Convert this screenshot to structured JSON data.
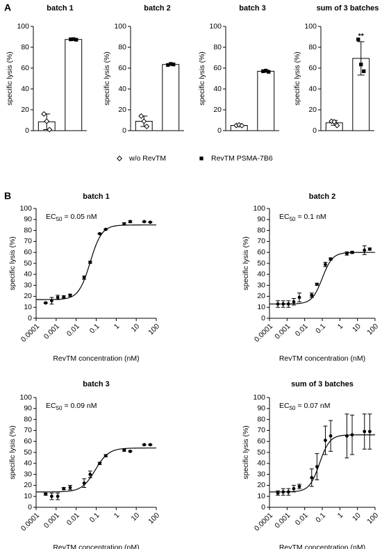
{
  "panel_labels": [
    "A",
    "B"
  ],
  "legend": [
    {
      "name": "w/o RevTM",
      "marker": "diamond"
    },
    {
      "name": "RevTM PSMA-7B6",
      "marker": "square"
    }
  ],
  "chart_data": [
    {
      "type": "bar",
      "title": "batch 1",
      "ylabel": "specific lysis (%)",
      "ylim": [
        0,
        100
      ],
      "yticks": [
        0,
        20,
        40,
        60,
        80,
        100
      ],
      "categories": [
        null,
        null
      ],
      "values": [
        8.5,
        87.5
      ],
      "errors": [
        7.5,
        0.4
      ],
      "points": [
        [
          16,
          9,
          1
        ],
        [
          87.6,
          87.8,
          87.2
        ]
      ]
    },
    {
      "type": "bar",
      "title": "batch 2",
      "ylabel": "specific lysis (%)",
      "ylim": [
        0,
        100
      ],
      "yticks": [
        0,
        20,
        40,
        60,
        80,
        100
      ],
      "categories": [
        null,
        null
      ],
      "values": [
        9,
        63.5
      ],
      "errors": [
        5,
        0.7
      ],
      "points": [
        [
          14,
          9,
          4
        ],
        [
          63,
          64,
          63.5
        ]
      ]
    },
    {
      "type": "bar",
      "title": "batch 3",
      "ylabel": "specific lysis (%)",
      "ylim": [
        0,
        100
      ],
      "yticks": [
        0,
        20,
        40,
        60,
        80,
        100
      ],
      "categories": [
        null,
        null
      ],
      "values": [
        5,
        57
      ],
      "errors": [
        0.8,
        1
      ],
      "points": [
        [
          5,
          5.5,
          4.8
        ],
        [
          57,
          57.6,
          56.4
        ]
      ]
    },
    {
      "type": "bar",
      "title": "sum of 3 batches",
      "ylabel": "specific lysis (%)",
      "ylim": [
        0,
        100
      ],
      "yticks": [
        0,
        20,
        40,
        60,
        80,
        100
      ],
      "categories": [
        null,
        null
      ],
      "values": [
        7.5,
        69.3
      ],
      "errors": [
        2.3,
        16
      ],
      "points": [
        [
          9,
          8.5,
          5
        ],
        [
          87.5,
          63.5,
          57
        ]
      ],
      "annotation": "**"
    },
    {
      "type": "dose-response",
      "title": "batch 1",
      "xlabel": "RevTM concentration (nM)",
      "ylabel": "specific lysis (%)",
      "xscale": "log",
      "xlim": [
        0.0001,
        100
      ],
      "xticks": [
        0.0001,
        0.001,
        0.01,
        0.1,
        1,
        10,
        100
      ],
      "ylim": [
        0,
        100
      ],
      "yticks": [
        0,
        10,
        20,
        30,
        40,
        50,
        60,
        70,
        80,
        90,
        100
      ],
      "x": [
        0.0003,
        0.0006,
        0.0012,
        0.0024,
        0.005,
        0.025,
        0.05,
        0.15,
        0.3,
        2.5,
        5,
        25,
        50
      ],
      "values": [
        14,
        16,
        19,
        19.5,
        21,
        37,
        51,
        77,
        81,
        86,
        88,
        88,
        87.5
      ],
      "errors": [
        0.5,
        3,
        2,
        1,
        1,
        1.5,
        1,
        0.5,
        0.5,
        1,
        1,
        0.5,
        0.5
      ],
      "fit": {
        "bottom": 17,
        "top": 85,
        "ec50": 0.05,
        "hill": 1.5
      },
      "annotation": [
        "EC",
        "50",
        "= 0.05 nM"
      ]
    },
    {
      "type": "dose-response",
      "title": "batch 2",
      "xlabel": "RevTM concentration (nM)",
      "ylabel": "specific lysis (%)",
      "xscale": "log",
      "xlim": [
        0.0001,
        100
      ],
      "xticks": [
        0.0001,
        0.001,
        0.01,
        0.1,
        1,
        10,
        100
      ],
      "ylim": [
        0,
        100
      ],
      "yticks": [
        0,
        10,
        20,
        30,
        40,
        50,
        60,
        70,
        80,
        90,
        100
      ],
      "x": [
        0.0003,
        0.0006,
        0.0012,
        0.0024,
        0.005,
        0.025,
        0.05,
        0.15,
        0.3,
        2.5,
        5,
        25,
        50
      ],
      "values": [
        13,
        13,
        13,
        15,
        19,
        21,
        31,
        49,
        54,
        59,
        60,
        62,
        63
      ],
      "errors": [
        3,
        3,
        3,
        3,
        4,
        2,
        1,
        2,
        1,
        1.5,
        1,
        4,
        1
      ],
      "fit": {
        "bottom": 13,
        "top": 60,
        "ec50": 0.1,
        "hill": 1.5
      },
      "annotation": [
        "EC",
        "50",
        "= 0.1 nM"
      ]
    },
    {
      "type": "dose-response",
      "title": "batch 3",
      "xlabel": "RevTM concentration (nM)",
      "ylabel": "specific lysis (%)",
      "xscale": "log",
      "xlim": [
        0.0001,
        100
      ],
      "xticks": [
        0.0001,
        0.001,
        0.01,
        0.1,
        1,
        10,
        100
      ],
      "ylim": [
        0,
        100
      ],
      "yticks": [
        0,
        10,
        20,
        30,
        40,
        50,
        60,
        70,
        80,
        90,
        100
      ],
      "x": [
        0.0003,
        0.0006,
        0.0012,
        0.0024,
        0.005,
        0.025,
        0.05,
        0.15,
        0.3,
        2.5,
        5,
        25,
        50
      ],
      "values": [
        12,
        10,
        10,
        17,
        18,
        22,
        30,
        40,
        47,
        52,
        51,
        57,
        57
      ],
      "errors": [
        1,
        3,
        3,
        1,
        2,
        4,
        3,
        1,
        1,
        1,
        0.5,
        0.5,
        0.5
      ],
      "fit": {
        "bottom": 14,
        "top": 54,
        "ec50": 0.09,
        "hill": 1.3
      },
      "annotation": [
        "EC",
        "50",
        "= 0.09 nM"
      ]
    },
    {
      "type": "dose-response",
      "title": "sum of 3 batches",
      "xlabel": "RevTM concentration (nM)",
      "ylabel": "specific lysis (%)",
      "xscale": "log",
      "xlim": [
        0.0001,
        100
      ],
      "xticks": [
        0.0001,
        0.001,
        0.01,
        0.1,
        1,
        10,
        100
      ],
      "ylim": [
        0,
        100
      ],
      "yticks": [
        0,
        10,
        20,
        30,
        40,
        50,
        60,
        70,
        80,
        90,
        100
      ],
      "x": [
        0.0003,
        0.0006,
        0.0012,
        0.0024,
        0.005,
        0.025,
        0.05,
        0.15,
        0.3,
        2.5,
        5,
        25,
        50
      ],
      "values": [
        13,
        14,
        14,
        17,
        19,
        27,
        37,
        61,
        65,
        65,
        66,
        69,
        69
      ],
      "errors": [
        2,
        3,
        3,
        3,
        2,
        8,
        12,
        13,
        14,
        20,
        18,
        16,
        16
      ],
      "fit": {
        "bottom": 14,
        "top": 66,
        "ec50": 0.07,
        "hill": 1.5
      },
      "annotation": [
        "EC",
        "50",
        "=  0.07 nM"
      ]
    }
  ]
}
